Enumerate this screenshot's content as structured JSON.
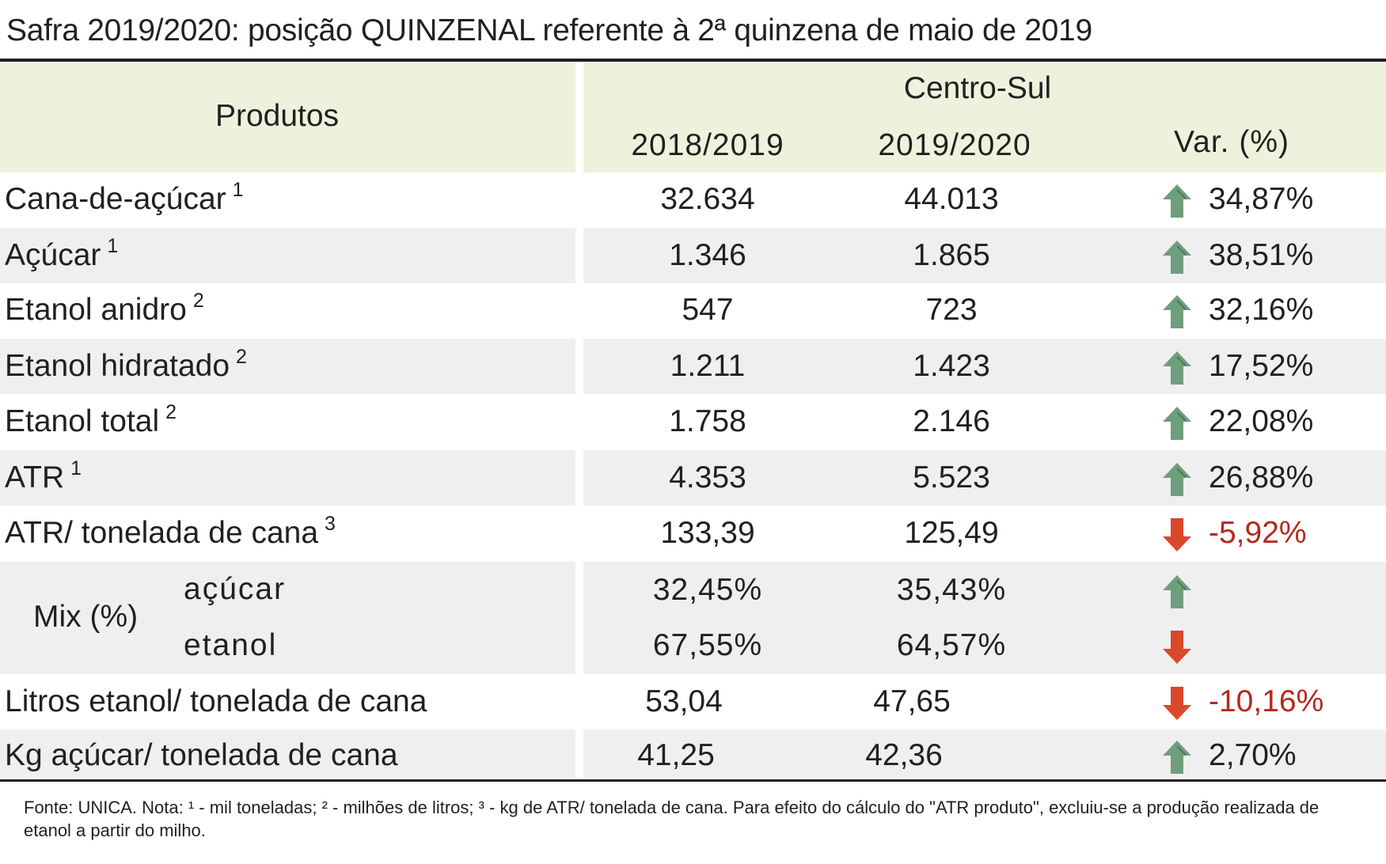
{
  "title": "Safra 2019/2020: posição QUINZENAL referente à 2ª quinzena de maio de 2019",
  "header": {
    "products": "Produtos",
    "region": "Centro-Sul",
    "col1": "2018/2019",
    "col2": "2019/2020",
    "col3": "Var. (%)"
  },
  "rows": [
    {
      "label": "Cana-de-açúcar",
      "note": "1",
      "v1": "32.634",
      "v2": "44.013",
      "var": "34,87%",
      "trend": "up"
    },
    {
      "label": "Açúcar",
      "note": "1",
      "v1": "1.346",
      "v2": "1.865",
      "var": "38,51%",
      "trend": "up"
    },
    {
      "label": "Etanol anidro",
      "note": "2",
      "v1": "547",
      "v2": "723",
      "var": "32,16%",
      "trend": "up"
    },
    {
      "label": "Etanol hidratado",
      "note": "2",
      "v1": "1.211",
      "v2": "1.423",
      "var": "17,52%",
      "trend": "up"
    },
    {
      "label": "Etanol total",
      "note": "2",
      "v1": "1.758",
      "v2": "2.146",
      "var": "22,08%",
      "trend": "up"
    },
    {
      "label": "ATR",
      "note": "1",
      "v1": "4.353",
      "v2": "5.523",
      "var": "26,88%",
      "trend": "up"
    },
    {
      "label": "ATR/ tonelada de cana",
      "note": "3",
      "v1": "133,39",
      "v2": "125,49",
      "var": "-5,92%",
      "trend": "down"
    }
  ],
  "mix": {
    "label": "Mix (%)",
    "sugar": {
      "label": "açúcar",
      "v1": "32,45%",
      "v2": "35,43%",
      "trend": "up"
    },
    "ethanol": {
      "label": "etanol",
      "v1": "67,55%",
      "v2": "64,57%",
      "trend": "down"
    }
  },
  "rows2": [
    {
      "label": "Litros etanol/ tonelada de cana",
      "v1": "53,04",
      "v2": "47,65",
      "var": "-10,16%",
      "trend": "down"
    },
    {
      "label": "Kg açúcar/ tonelada de cana",
      "v1": "41,25",
      "v2": "42,36",
      "var": "2,70%",
      "trend": "up"
    }
  ],
  "footnote": "Fonte: UNICA. Nota: ¹ - mil toneladas; ² - milhões de litros; ³ - kg de ATR/ tonelada de cana. Para efeito do cálculo do \"ATR produto\", excluiu-se a produção realizada de etanol a partir do milho.",
  "colors": {
    "header_bg": "#eef2dd",
    "band_bg": "#efefef",
    "up_arrow": "#6f9e7c",
    "down_arrow": "#d9482b",
    "negative_text": "#b5281d"
  }
}
